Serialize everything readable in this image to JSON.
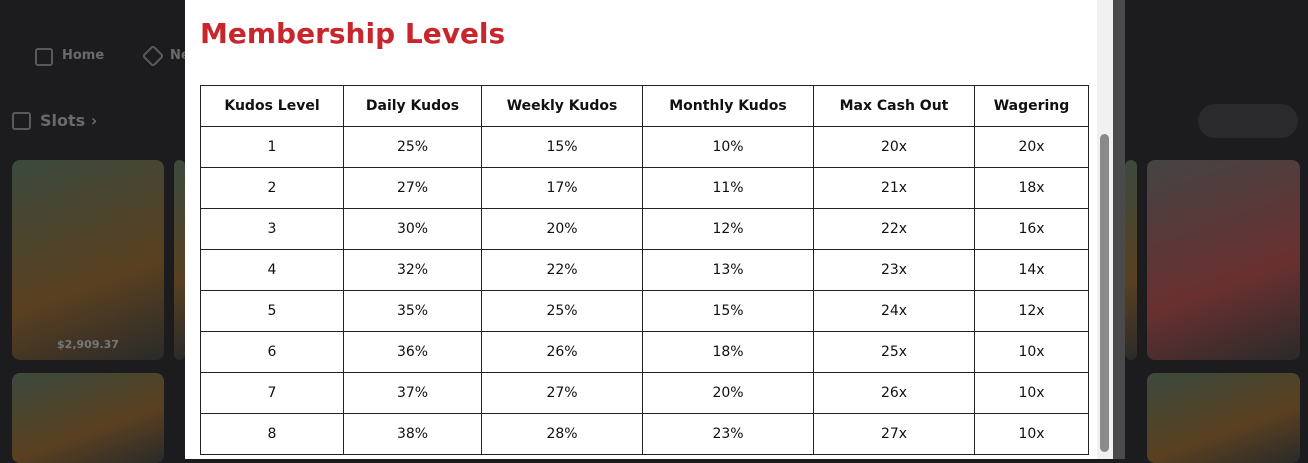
{
  "nav": {
    "items": [
      "Home",
      "Ne"
    ]
  },
  "section": {
    "title": "Slots"
  },
  "tiles": [
    {
      "amount": "$2,909.37"
    }
  ],
  "modal": {
    "title": "Membership Levels",
    "table": {
      "headers": [
        "Kudos Level",
        "Daily Kudos",
        "Weekly Kudos",
        "Monthly Kudos",
        "Max Cash Out",
        "Wagering"
      ],
      "rows": [
        [
          "1",
          "25%",
          "15%",
          "10%",
          "20x",
          "20x"
        ],
        [
          "2",
          "27%",
          "17%",
          "11%",
          "21x",
          "18x"
        ],
        [
          "3",
          "30%",
          "20%",
          "12%",
          "22x",
          "16x"
        ],
        [
          "4",
          "32%",
          "22%",
          "13%",
          "23x",
          "14x"
        ],
        [
          "5",
          "35%",
          "25%",
          "15%",
          "24x",
          "12x"
        ],
        [
          "6",
          "36%",
          "26%",
          "18%",
          "25x",
          "10x"
        ],
        [
          "7",
          "37%",
          "27%",
          "20%",
          "26x",
          "10x"
        ],
        [
          "8",
          "38%",
          "28%",
          "23%",
          "27x",
          "10x"
        ]
      ]
    }
  }
}
